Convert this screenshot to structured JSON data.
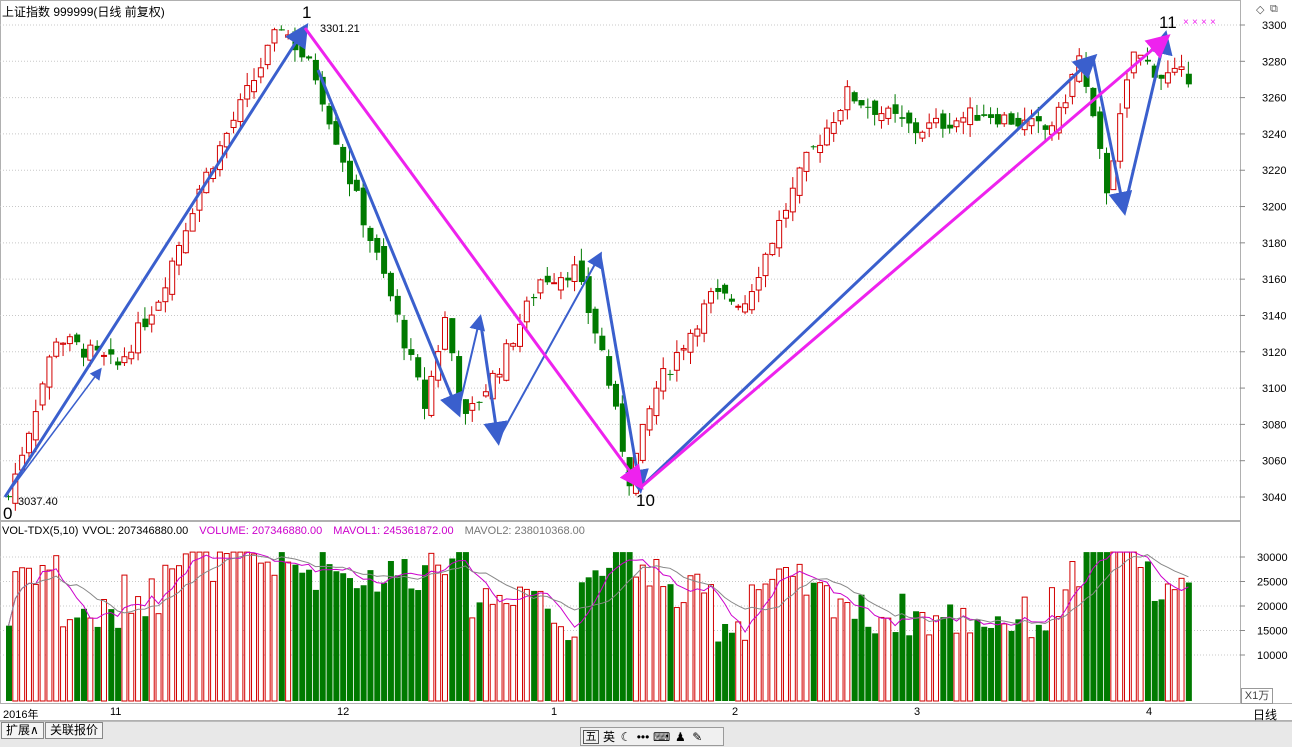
{
  "header": {
    "title": "上证指数 999999(日线 前复权)"
  },
  "window_icons": [
    "restore-icon",
    "maximize-icon"
  ],
  "main_chart": {
    "high_label": "3301.21",
    "low_label": "3037.40",
    "wave_labels": [
      "0",
      "1",
      "10",
      "11"
    ],
    "y_ticks": [
      "3300",
      "3280",
      "3260",
      "3240",
      "3220",
      "3200",
      "3180",
      "3160",
      "3140",
      "3120",
      "3100",
      "3080",
      "3060",
      "3040"
    ]
  },
  "volume_panel": {
    "legend": {
      "name": "VOL-TDX(5,10)",
      "vvol": "VVOL: 207346880.00",
      "volume": "VOLUME: 207346880.00",
      "mavol1": "MAVOL1: 245361872.00",
      "mavol2": "MAVOL2: 238010368.00"
    },
    "y_ticks": [
      "30000",
      "25000",
      "20000",
      "15000",
      "10000"
    ],
    "unit": "X1万"
  },
  "date_axis": {
    "year": "2016年",
    "months": [
      "11",
      "12",
      "1",
      "2",
      "3",
      "4"
    ],
    "period": "日线"
  },
  "bottom_tabs": [
    "扩展∧",
    "关联报价"
  ],
  "ime_bar": {
    "items": [
      "五",
      "英"
    ],
    "icons": [
      "moon-icon",
      "dots-icon",
      "keyboard-icon",
      "user-icon",
      "wrench-icon"
    ]
  },
  "colors": {
    "up": "#d20000",
    "down": "#007a00",
    "wave_blue": "#3a5fcd",
    "wave_magenta": "#ee22ee",
    "mavol1": "#cc00cc",
    "mavol2": "#888888"
  }
}
